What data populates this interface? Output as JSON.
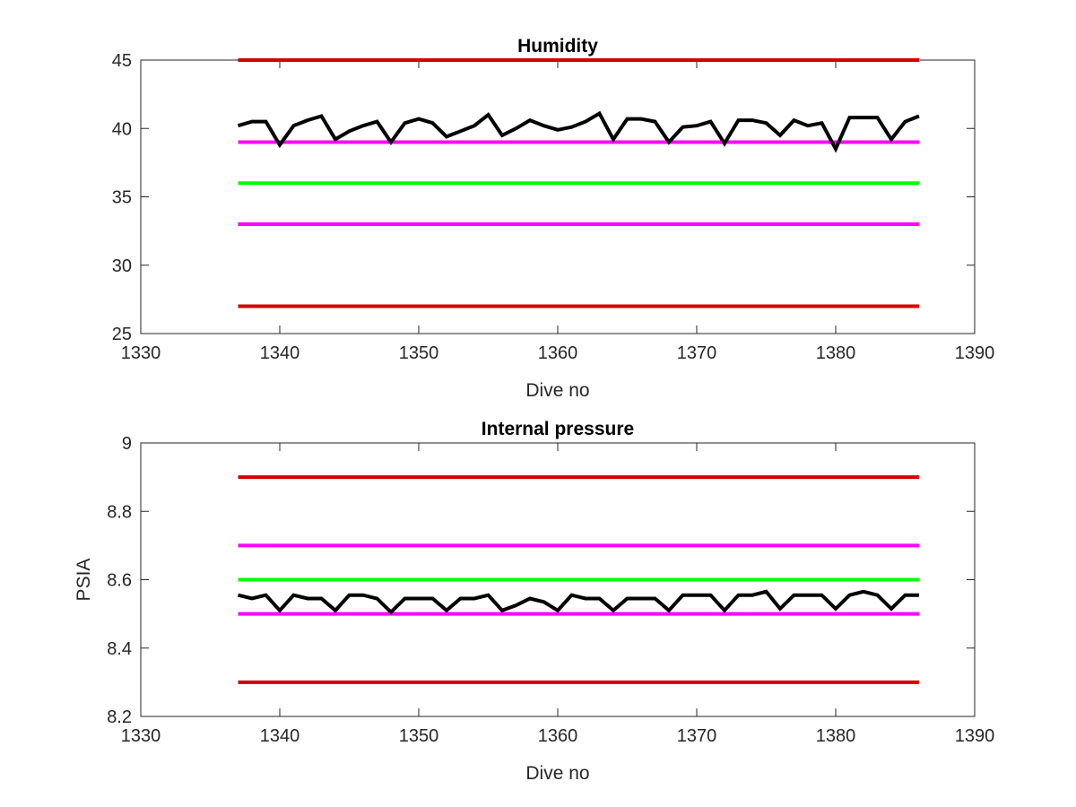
{
  "colors": {
    "data_line": "#000000",
    "limit_red": "#d40000",
    "warn_magenta": "#ff00ff",
    "target_green": "#00ff00",
    "axes": "#262626"
  },
  "chart_data": [
    {
      "type": "line",
      "title": "Humidity",
      "xlabel": "Dive no",
      "ylabel": "",
      "xlim": [
        1330,
        1390
      ],
      "ylim": [
        25,
        45
      ],
      "xticks": [
        "1330",
        "1340",
        "1350",
        "1360",
        "1370",
        "1380",
        "1390"
      ],
      "yticks": [
        "25",
        "30",
        "35",
        "40",
        "45"
      ],
      "grid": false,
      "series": [
        {
          "color": "#000000",
          "x": [
            1337,
            1338,
            1339,
            1340,
            1341,
            1342,
            1343,
            1344,
            1345,
            1346,
            1347,
            1348,
            1349,
            1350,
            1351,
            1352,
            1353,
            1354,
            1355,
            1356,
            1357,
            1358,
            1359,
            1360,
            1361,
            1362,
            1363,
            1364,
            1365,
            1366,
            1367,
            1368,
            1369,
            1370,
            1371,
            1372,
            1373,
            1374,
            1375,
            1376,
            1377,
            1378,
            1379,
            1380,
            1381,
            1382,
            1383,
            1384,
            1385,
            1386
          ],
          "y": [
            40.2,
            40.5,
            40.5,
            38.8,
            40.2,
            40.6,
            40.9,
            39.2,
            39.8,
            40.2,
            40.5,
            39.0,
            40.4,
            40.7,
            40.4,
            39.4,
            39.8,
            40.2,
            41.0,
            39.5,
            40.0,
            40.6,
            40.2,
            39.9,
            40.1,
            40.5,
            41.1,
            39.2,
            40.7,
            40.7,
            40.5,
            39.0,
            40.1,
            40.2,
            40.5,
            38.9,
            40.6,
            40.6,
            40.4,
            39.5,
            40.6,
            40.2,
            40.4,
            38.5,
            40.8,
            40.8,
            40.8,
            39.2,
            40.5,
            40.9
          ]
        },
        {
          "color": "#d40000",
          "x": [
            1337,
            1386
          ],
          "y": [
            45,
            45
          ]
        },
        {
          "color": "#ff00ff",
          "x": [
            1337,
            1386
          ],
          "y": [
            39,
            39
          ]
        },
        {
          "color": "#00ff00",
          "x": [
            1337,
            1386
          ],
          "y": [
            36,
            36
          ]
        },
        {
          "color": "#ff00ff",
          "x": [
            1337,
            1386
          ],
          "y": [
            33,
            33
          ]
        },
        {
          "color": "#d40000",
          "x": [
            1337,
            1386
          ],
          "y": [
            27,
            27
          ]
        }
      ]
    },
    {
      "type": "line",
      "title": "Internal pressure",
      "xlabel": "Dive no",
      "ylabel": "PSIA",
      "xlim": [
        1330,
        1390
      ],
      "ylim": [
        8.2,
        9.0
      ],
      "xticks": [
        "1330",
        "1340",
        "1350",
        "1360",
        "1370",
        "1380",
        "1390"
      ],
      "yticks": [
        "8.2",
        "8.4",
        "8.6",
        "8.8",
        "9"
      ],
      "grid": false,
      "series": [
        {
          "color": "#000000",
          "x": [
            1337,
            1338,
            1339,
            1340,
            1341,
            1342,
            1343,
            1344,
            1345,
            1346,
            1347,
            1348,
            1349,
            1350,
            1351,
            1352,
            1353,
            1354,
            1355,
            1356,
            1357,
            1358,
            1359,
            1360,
            1361,
            1362,
            1363,
            1364,
            1365,
            1366,
            1367,
            1368,
            1369,
            1370,
            1371,
            1372,
            1373,
            1374,
            1375,
            1376,
            1377,
            1378,
            1379,
            1380,
            1381,
            1382,
            1383,
            1384,
            1385,
            1386
          ],
          "y": [
            8.555,
            8.545,
            8.555,
            8.51,
            8.555,
            8.545,
            8.545,
            8.51,
            8.555,
            8.555,
            8.545,
            8.505,
            8.545,
            8.545,
            8.545,
            8.51,
            8.545,
            8.545,
            8.555,
            8.51,
            8.525,
            8.545,
            8.535,
            8.51,
            8.555,
            8.545,
            8.545,
            8.51,
            8.545,
            8.545,
            8.545,
            8.51,
            8.555,
            8.555,
            8.555,
            8.51,
            8.555,
            8.555,
            8.565,
            8.515,
            8.555,
            8.555,
            8.555,
            8.515,
            8.555,
            8.565,
            8.555,
            8.515,
            8.555,
            8.555
          ]
        },
        {
          "color": "#d40000",
          "x": [
            1337,
            1386
          ],
          "y": [
            8.9,
            8.9
          ]
        },
        {
          "color": "#ff00ff",
          "x": [
            1337,
            1386
          ],
          "y": [
            8.7,
            8.7
          ]
        },
        {
          "color": "#00ff00",
          "x": [
            1337,
            1386
          ],
          "y": [
            8.6,
            8.6
          ]
        },
        {
          "color": "#ff00ff",
          "x": [
            1337,
            1386
          ],
          "y": [
            8.5,
            8.5
          ]
        },
        {
          "color": "#d40000",
          "x": [
            1337,
            1386
          ],
          "y": [
            8.3,
            8.3
          ]
        }
      ]
    }
  ]
}
